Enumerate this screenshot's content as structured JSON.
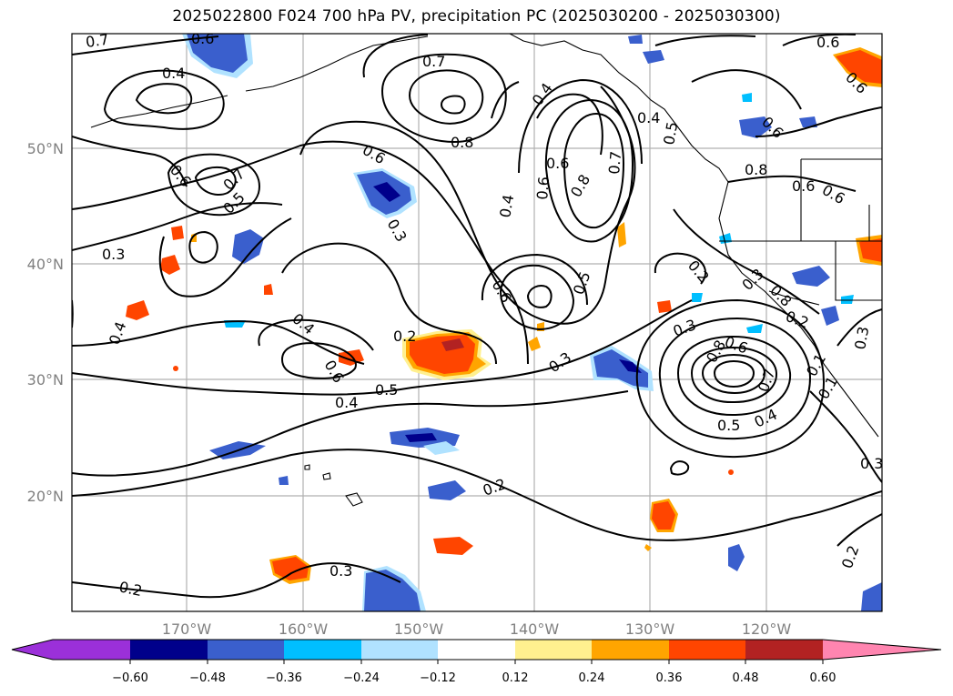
{
  "title": "2025022800 F024 700 hPa PV, precipitation PC (2025030200 - 2025030300)",
  "lat_labels": [
    "50°N",
    "40°N",
    "30°N",
    "20°N"
  ],
  "lon_labels": [
    "170°W",
    "160°W",
    "150°W",
    "140°W",
    "130°W",
    "120°W"
  ],
  "colorbar": {
    "ticks": [
      "−0.60",
      "−0.48",
      "−0.36",
      "−0.24",
      "−0.12",
      "0.12",
      "0.24",
      "0.36",
      "0.48",
      "0.60"
    ],
    "colors": [
      "#9b30d9",
      "#00008b",
      "#3a5fcd",
      "#00bfff",
      "#b0e2ff",
      "#ffffff",
      "#fff08f",
      "#ffa500",
      "#ff4500",
      "#b22222",
      "#ff85b0"
    ]
  },
  "contour_labels": [
    "0.7",
    "0.4",
    "0.6",
    "0.7",
    "0.8",
    "0.4",
    "0.6",
    "0.6",
    "0.6",
    "0.5",
    "0.7",
    "0.3",
    "0.6",
    "0.3",
    "0.4",
    "0.8",
    "0.6",
    "0.7",
    "0.4",
    "0.4",
    "0.2",
    "0.6",
    "0.5",
    "0.4",
    "0.5",
    "0.3",
    "0.2",
    "0.3",
    "0.8",
    "0.6",
    "0.3",
    "0.2",
    "0.3",
    "0.8",
    "0.7",
    "0.5",
    "0.4",
    "0.1",
    "0.3",
    "0.2",
    "0.3",
    "0.2",
    "0.6",
    "0.6",
    "0.8",
    "0.6",
    "0.4",
    "0.6",
    "0.5",
    "0.6",
    "0.1"
  ]
}
